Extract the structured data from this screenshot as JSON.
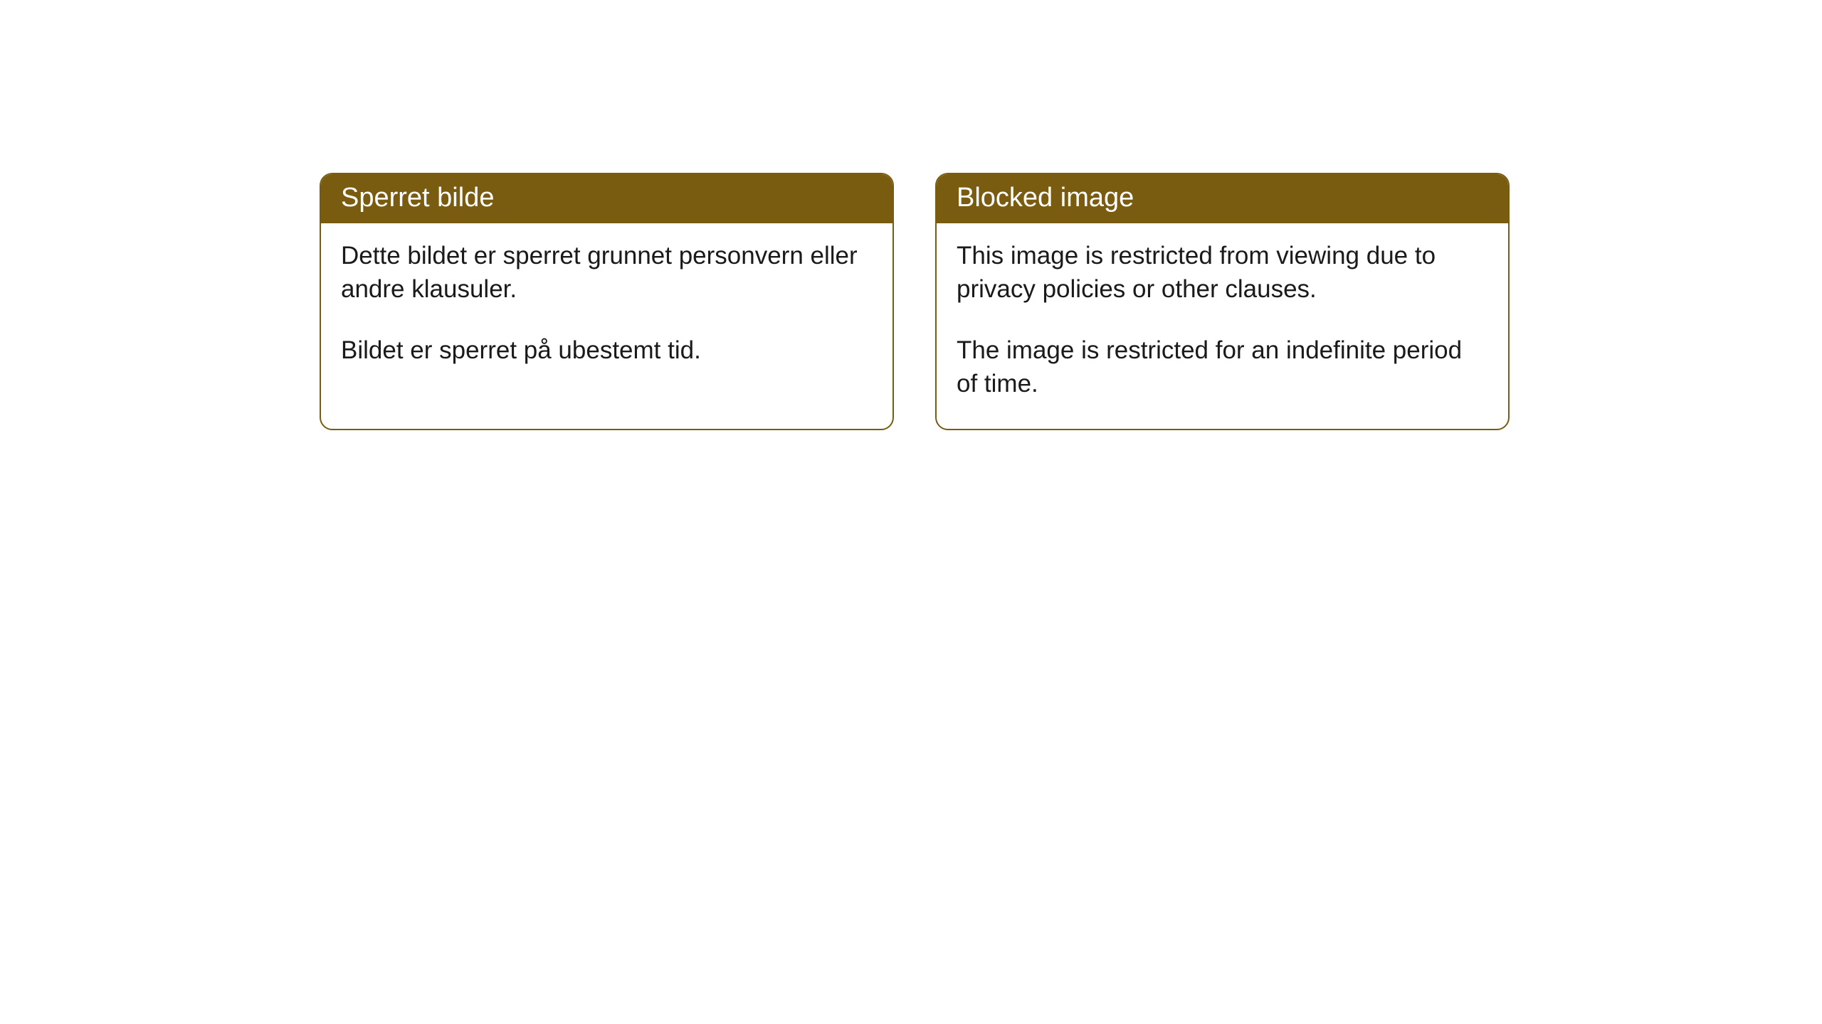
{
  "cards": [
    {
      "title": "Sperret bilde",
      "para1": "Dette bildet er sperret grunnet personvern eller andre klausuler.",
      "para2": "Bildet er sperret på ubestemt tid."
    },
    {
      "title": "Blocked image",
      "para1": "This image is restricted from viewing due to privacy policies or other clauses.",
      "para2": "The image is restricted for an indefinite period of time."
    }
  ],
  "style": {
    "header_bg": "#7a5c11",
    "header_text_color": "#ffffff",
    "border_color": "#7a5c11",
    "body_text_color": "#1a1a1a",
    "background": "#ffffff",
    "header_fontsize": 38,
    "body_fontsize": 35,
    "border_radius": 18
  }
}
